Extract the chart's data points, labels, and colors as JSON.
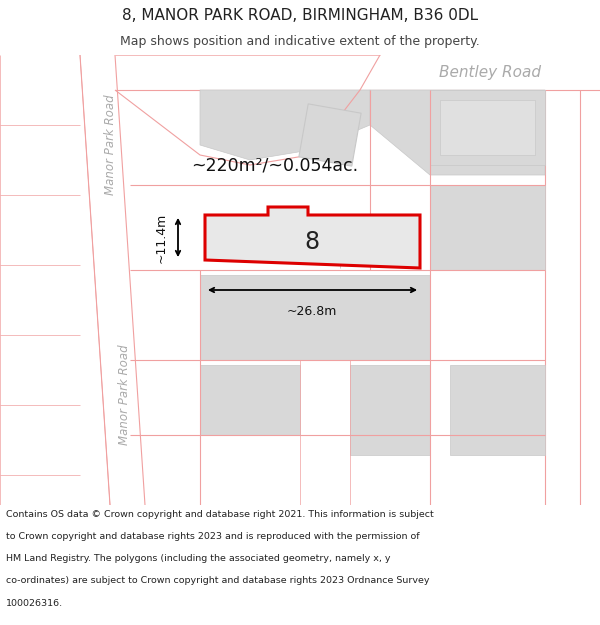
{
  "title_line1": "8, MANOR PARK ROAD, BIRMINGHAM, B36 0DL",
  "title_line2": "Map shows position and indicative extent of the property.",
  "footer_lines": [
    "Contains OS data © Crown copyright and database right 2021. This information is subject",
    "to Crown copyright and database rights 2023 and is reproduced with the permission of",
    "HM Land Registry. The polygons (including the associated geometry, namely x, y",
    "co-ordinates) are subject to Crown copyright and database rights 2023 Ordnance Survey",
    "100026316."
  ],
  "bg_color": "#ffffff",
  "map_bg_color": "#f2f2f2",
  "road_fill_color": "#ffffff",
  "pink": "#f0a0a0",
  "building_fill": "#d8d8d8",
  "building_stroke": "#c8c8c8",
  "subject_fill": "#e8e8e8",
  "subject_stroke": "#dd0000",
  "label_color": "#bbbbbb",
  "dim_color": "#111111",
  "area_text": "~220m²/~0.054ac.",
  "width_text": "~26.8m",
  "height_text": "~11.4m",
  "property_number": "8",
  "bentley_road_label": "Bentley Road",
  "manor_road_label": "Manor Park Road"
}
